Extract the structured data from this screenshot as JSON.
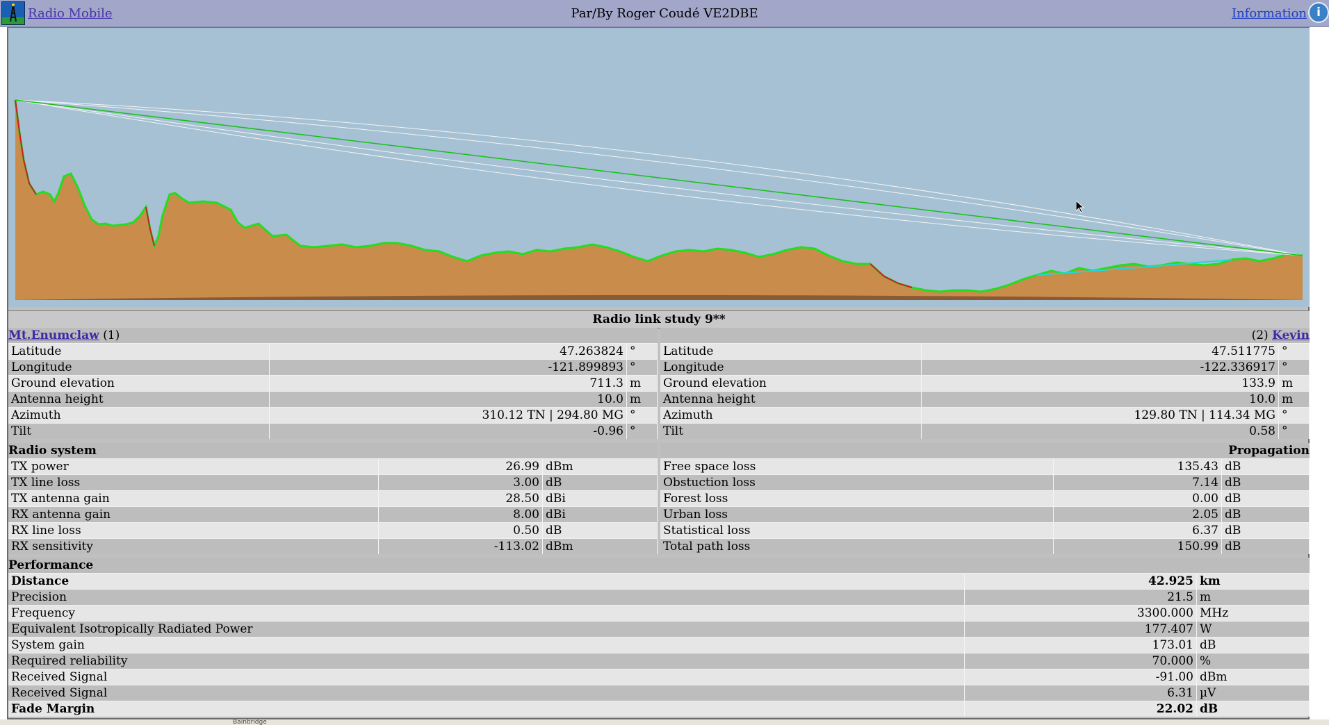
{
  "header": {
    "app_link": "Radio Mobile",
    "author": "Par/By Roger Coudé VE2DBE",
    "info_link": "Information",
    "info_icon": "info-icon"
  },
  "profile_colors": {
    "sky": "#a5c1d3",
    "terrain": "#c98c4b",
    "line_of_sight": "#18c018",
    "fresnel": "#f4f4f4"
  },
  "study_title": "Radio link study 9**",
  "site1": {
    "name": "Mt.Enumclaw",
    "number": "(1)",
    "rows": [
      {
        "label": "Latitude",
        "value": "47.263824",
        "unit": "°"
      },
      {
        "label": "Longitude",
        "value": "-121.899893",
        "unit": "°"
      },
      {
        "label": "Ground elevation",
        "value": "711.3",
        "unit": "m"
      },
      {
        "label": "Antenna height",
        "value": "10.0",
        "unit": "m"
      },
      {
        "label": "Azimuth",
        "value": "310.12 TN | 294.80 MG",
        "unit": "°"
      },
      {
        "label": "Tilt",
        "value": "-0.96",
        "unit": "°"
      }
    ]
  },
  "site2": {
    "name": "Kevin",
    "number": "(2)",
    "rows": [
      {
        "label": "Latitude",
        "value": "47.511775",
        "unit": "°"
      },
      {
        "label": "Longitude",
        "value": "-122.336917",
        "unit": "°"
      },
      {
        "label": "Ground elevation",
        "value": "133.9",
        "unit": "m"
      },
      {
        "label": "Antenna height",
        "value": "10.0",
        "unit": "m"
      },
      {
        "label": "Azimuth",
        "value": "129.80 TN | 114.34 MG",
        "unit": "°"
      },
      {
        "label": "Tilt",
        "value": "0.58",
        "unit": "°"
      }
    ]
  },
  "radio_system": {
    "title": "Radio system",
    "rows": [
      {
        "label": "TX power",
        "value": "26.99",
        "unit": "dBm"
      },
      {
        "label": "TX line loss",
        "value": "3.00",
        "unit": "dB"
      },
      {
        "label": "TX antenna gain",
        "value": "28.50",
        "unit": "dBi"
      },
      {
        "label": "RX antenna gain",
        "value": "8.00",
        "unit": "dBi"
      },
      {
        "label": "RX line loss",
        "value": "0.50",
        "unit": "dB"
      },
      {
        "label": "RX sensitivity",
        "value": "-113.02",
        "unit": "dBm"
      }
    ]
  },
  "propagation": {
    "title": "Propagation",
    "rows": [
      {
        "label": "Free space loss",
        "value": "135.43",
        "unit": "dB"
      },
      {
        "label": "Obstuction loss",
        "value": "7.14",
        "unit": "dB"
      },
      {
        "label": "Forest loss",
        "value": "0.00",
        "unit": "dB"
      },
      {
        "label": "Urban loss",
        "value": "2.05",
        "unit": "dB"
      },
      {
        "label": "Statistical loss",
        "value": "6.37",
        "unit": "dB"
      },
      {
        "label": "Total path loss",
        "value": "150.99",
        "unit": "dB"
      }
    ]
  },
  "performance": {
    "title": "Performance",
    "rows": [
      {
        "label": "Distance",
        "value": "42.925",
        "unit": "km",
        "bold": true
      },
      {
        "label": "Precision",
        "value": "21.5",
        "unit": "m"
      },
      {
        "label": "Frequency",
        "value": "3300.000",
        "unit": "MHz"
      },
      {
        "label": "Equivalent Isotropically Radiated Power",
        "value": "177.407",
        "unit": "W"
      },
      {
        "label": "System gain",
        "value": "173.01",
        "unit": "dB"
      },
      {
        "label": "Required reliability",
        "value": "70.000",
        "unit": "%"
      },
      {
        "label": "Received Signal",
        "value": "-91.00",
        "unit": "dBm"
      },
      {
        "label": "Received Signal",
        "value": "6.31",
        "unit": "µV"
      },
      {
        "label": "Fade Margin",
        "value": "22.02",
        "unit": "dB",
        "bold": true
      }
    ]
  },
  "map_strip_label": "Bainbridge"
}
